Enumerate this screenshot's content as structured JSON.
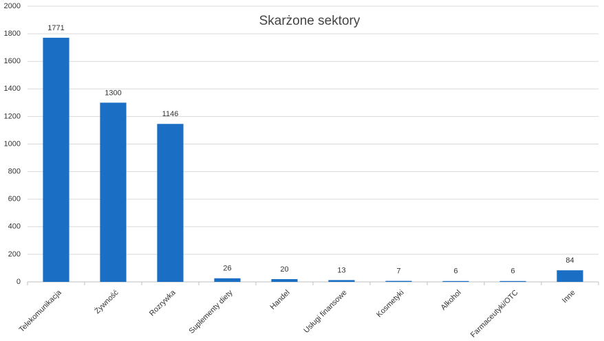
{
  "chart_data": {
    "type": "bar",
    "title": "Skarżone sektory",
    "categories": [
      "Telekomunikacja",
      "Żywność",
      "Rozrywka",
      "Suplementy diety",
      "Handel",
      "Usługi finansowe",
      "Kosmetyki",
      "Alkohol",
      "Farmaceutyki/OTC",
      "Inne"
    ],
    "values": [
      1771,
      1300,
      1146,
      26,
      20,
      13,
      7,
      6,
      6,
      84
    ],
    "color": "#1a6fc4",
    "ylim": [
      0,
      2000
    ],
    "yticks": [
      0,
      200,
      400,
      600,
      800,
      1000,
      1200,
      1400,
      1600,
      1800,
      2000
    ],
    "grid": true
  }
}
